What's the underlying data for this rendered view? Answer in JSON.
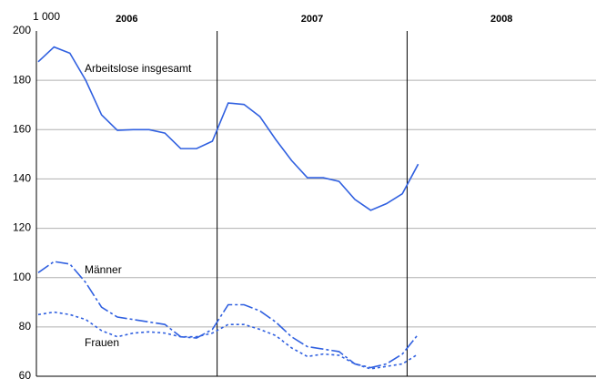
{
  "chart_data": {
    "type": "line",
    "unit_label": "1 000",
    "years": [
      "2006",
      "2007",
      "2008"
    ],
    "categories": [
      null,
      null,
      null,
      null,
      null,
      null,
      null,
      null,
      null,
      null,
      null,
      null,
      null,
      null,
      null,
      null,
      null,
      null,
      null,
      null,
      null,
      null,
      null,
      null,
      null,
      null,
      null,
      null,
      null,
      null,
      null,
      null,
      null,
      null,
      null,
      null
    ],
    "series": [
      {
        "name": "Arbeitslose insgesamt",
        "color": "#3060e0",
        "dash": "solid",
        "values": [
          187.5,
          193.5,
          191,
          180,
          166,
          159.7,
          160,
          160,
          158.6,
          152.3,
          152.3,
          155.3,
          170.8,
          170.2,
          165.3,
          156,
          147.5,
          140.5,
          140.5,
          139,
          131.7,
          127.3,
          130,
          134,
          146,
          null,
          null,
          null,
          null,
          null,
          null,
          null,
          null,
          null,
          null,
          null
        ]
      },
      {
        "name": "Männer",
        "color": "#3060e0",
        "dash": "dashdot",
        "values": [
          102,
          106.5,
          105.5,
          98,
          88,
          84,
          83,
          82,
          81,
          76,
          75.5,
          79,
          89,
          89,
          86.5,
          82,
          76,
          72,
          71,
          70,
          65,
          63.5,
          65,
          69,
          77,
          null,
          null,
          null,
          null,
          null,
          null,
          null,
          null,
          null,
          null,
          null
        ]
      },
      {
        "name": "Frauen",
        "color": "#3060e0",
        "dash": "dot",
        "values": [
          85,
          86,
          85,
          83,
          78.5,
          76,
          77.5,
          78,
          77.5,
          76,
          76,
          77.5,
          81,
          81,
          79,
          76.5,
          71.5,
          68,
          69,
          68.5,
          65,
          63,
          64,
          65,
          69,
          null,
          null,
          null,
          null,
          null,
          null,
          null,
          null,
          null,
          null,
          null
        ]
      }
    ],
    "ylim": [
      60,
      200
    ],
    "yticks": [
      60,
      80,
      100,
      120,
      140,
      160,
      180,
      200
    ],
    "grid": true
  }
}
